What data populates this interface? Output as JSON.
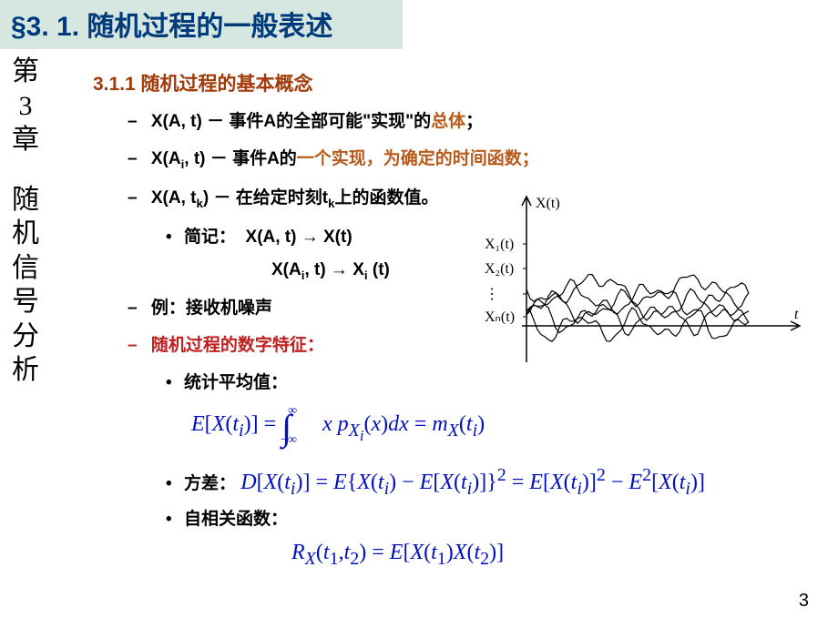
{
  "title": "§3. 1. 随机过程的一般表述",
  "sidebar": [
    "第",
    "3",
    "章",
    "",
    "随",
    "机",
    "信",
    "号",
    "分",
    "析"
  ],
  "section_heading": "3.1.1 随机过程的基本概念",
  "bullets": {
    "b1": {
      "pre": "X(A, t) － 事件A的全部可能\"实现\"的",
      "em": "总体",
      "post": "；"
    },
    "b2": {
      "pre": "X(A",
      "sub": "i",
      "mid": ", t) － 事件A的",
      "em": "一个实现，为确定的时间函数；"
    },
    "b3": {
      "pre": "X(A, t",
      "sub": "k",
      "post": ") － 在给定时刻t",
      "sub2": "k",
      "post2": "上的函数值。"
    },
    "short1_label": "简记：",
    "short1": "X(A, t) → X(t)",
    "short2_pre": "X(A",
    "short2_sub": "i",
    "short2_mid": ", t) → X",
    "short2_sub2": "i",
    "short2_post": " (t)",
    "example": "例：接收机噪声",
    "digital": "随机过程的数字特征",
    "stat_avg": "统计平均值：",
    "variance": "方差：",
    "autocorr": "自相关函数："
  },
  "equations": {
    "mean": "E[X(tᵢ)] = ∫₋∞^∞ x p_{Xᵢ}(x) dx = m_X(tᵢ)",
    "var": "D[X(tᵢ)] = E{X(tᵢ) − E[X(tᵢ)]}² = E[X(tᵢ)]² − E²[X(tᵢ)]",
    "acf": "R_X(t₁, t₂) = E[X(t₁)X(t₂)]"
  },
  "chart": {
    "y_labels": [
      "X(t)",
      "X₁(t)",
      "X₂(t)",
      "⋮",
      "Xₙ(t)"
    ],
    "x_label": "t",
    "axis_color": "#000000",
    "line_color": "#000000",
    "line_width": 1.2,
    "n_curves": 5,
    "x_range": [
      0,
      300
    ],
    "y_amp": 12
  },
  "page_number": "3",
  "colors": {
    "title_bg": "#d5e7e0",
    "title_fg": "#003a7a",
    "heading": "#a23a0a",
    "emphasis": "#b85a1a",
    "red": "#c02020",
    "equation": "#0010c0",
    "text": "#000000",
    "background": "#ffffff"
  },
  "typography": {
    "title_pt": 30,
    "body_pt": 19,
    "eq_pt": 24,
    "sidebar_pt": 30
  }
}
